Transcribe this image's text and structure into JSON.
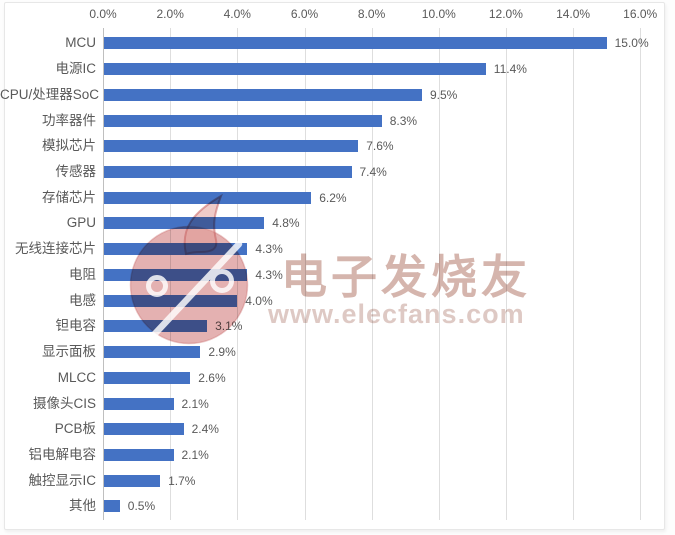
{
  "chart_data": {
    "type": "bar",
    "orientation": "horizontal",
    "title": "",
    "xlabel": "",
    "ylabel": "",
    "xlim": [
      0,
      16
    ],
    "grid": true,
    "axis_position": "top",
    "x_axis_ticks": [
      "0.0%",
      "2.0%",
      "4.0%",
      "6.0%",
      "8.0%",
      "10.0%",
      "12.0%",
      "14.0%",
      "16.0%"
    ],
    "x_axis_tick_values": [
      0,
      2,
      4,
      6,
      8,
      10,
      12,
      14,
      16
    ],
    "categories": [
      "MCU",
      "电源IC",
      "CPU/处理器SoC",
      "功率器件",
      "模拟芯片",
      "传感器",
      "存储芯片",
      "GPU",
      "无线连接芯片",
      "电阻",
      "电感",
      "钽电容",
      "显示面板",
      "MLCC",
      "摄像头CIS",
      "PCB板",
      "铝电解电容",
      "触控显示IC",
      "其他"
    ],
    "values": [
      15.0,
      11.4,
      9.5,
      8.3,
      7.6,
      7.4,
      6.2,
      4.8,
      4.3,
      4.3,
      4.0,
      3.1,
      2.9,
      2.6,
      2.1,
      2.4,
      2.1,
      1.7,
      0.5
    ],
    "value_labels": [
      "15.0%",
      "11.4%",
      "9.5%",
      "8.3%",
      "7.6%",
      "7.4%",
      "6.2%",
      "4.8%",
      "4.3%",
      "4.3%",
      "4.0%",
      "3.1%",
      "2.9%",
      "2.6%",
      "2.1%",
      "2.4%",
      "2.1%",
      "1.7%",
      "0.5%"
    ],
    "bar_color": "#4472c4",
    "text_color": "#595959",
    "gridline_color": "#dedede"
  },
  "watermark": {
    "brand_text": "电子发烧友",
    "url_text": "www.elecfans.com",
    "flame_color": "#ca6a6a",
    "text_color": "#b68072"
  }
}
